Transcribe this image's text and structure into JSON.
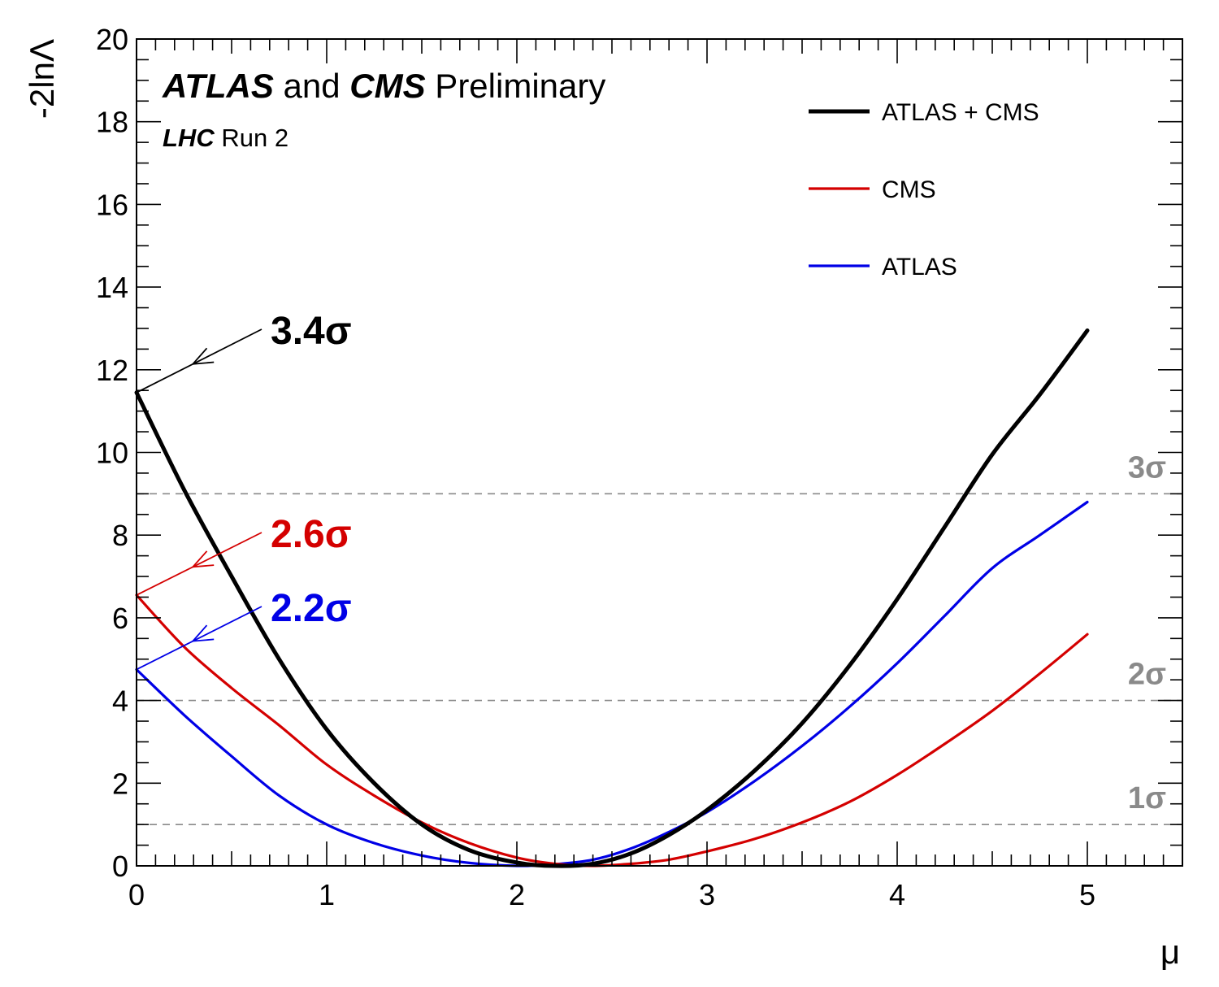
{
  "chart_data": {
    "type": "line",
    "title_parts": [
      {
        "text": "ATLAS",
        "style": "bold-italic"
      },
      {
        "text": " and ",
        "style": "normal"
      },
      {
        "text": "CMS",
        "style": "bold-italic"
      },
      {
        "text": " Preliminary",
        "style": "normal"
      }
    ],
    "subtitle_parts": [
      {
        "text": "LHC",
        "style": "bold-italic"
      },
      {
        "text": " Run 2",
        "style": "normal"
      }
    ],
    "xlabel": "μ",
    "ylabel": "-2lnΛ",
    "xlim": [
      0,
      5.5
    ],
    "ylim": [
      0,
      20
    ],
    "xticks": [
      0,
      1,
      2,
      3,
      4,
      5
    ],
    "yticks": [
      0,
      2,
      4,
      6,
      8,
      10,
      12,
      14,
      16,
      18,
      20
    ],
    "grid": false,
    "legend_position": "top-right",
    "series": [
      {
        "name": "ATLAS + CMS",
        "color": "#000000",
        "x": [
          0,
          0.25,
          0.5,
          0.75,
          1.0,
          1.25,
          1.5,
          1.75,
          2.0,
          2.2,
          2.4,
          2.6,
          2.8,
          3.0,
          3.25,
          3.5,
          3.75,
          4.0,
          4.25,
          4.5,
          4.75,
          5.0
        ],
        "y": [
          11.45,
          9.1,
          7.0,
          5.0,
          3.3,
          2.0,
          1.0,
          0.38,
          0.08,
          0.0,
          0.05,
          0.3,
          0.75,
          1.35,
          2.3,
          3.45,
          4.85,
          6.45,
          8.2,
          9.95,
          11.4,
          12.95
        ]
      },
      {
        "name": "CMS",
        "color": "#d40000",
        "x": [
          0,
          0.25,
          0.5,
          0.75,
          1.0,
          1.25,
          1.5,
          1.75,
          2.0,
          2.2,
          2.4,
          2.6,
          2.8,
          3.0,
          3.25,
          3.5,
          3.75,
          4.0,
          4.25,
          4.5,
          4.75,
          5.0
        ],
        "y": [
          6.55,
          5.3,
          4.3,
          3.4,
          2.45,
          1.7,
          1.05,
          0.55,
          0.2,
          0.05,
          0.0,
          0.05,
          0.15,
          0.35,
          0.65,
          1.05,
          1.55,
          2.2,
          2.95,
          3.75,
          4.65,
          5.6
        ]
      },
      {
        "name": "ATLAS",
        "color": "#0000e6",
        "x": [
          0,
          0.25,
          0.5,
          0.75,
          1.0,
          1.25,
          1.5,
          1.75,
          2.0,
          2.2,
          2.4,
          2.6,
          2.8,
          3.0,
          3.25,
          3.5,
          3.75,
          4.0,
          4.25,
          4.5,
          4.75,
          5.0
        ],
        "y": [
          4.75,
          3.65,
          2.65,
          1.7,
          1.0,
          0.55,
          0.25,
          0.07,
          0.0,
          0.04,
          0.15,
          0.42,
          0.82,
          1.3,
          2.05,
          2.9,
          3.85,
          4.9,
          6.05,
          7.2,
          8.0,
          8.8
        ]
      }
    ],
    "reference_lines": [
      {
        "y": 1,
        "label": "1σ",
        "color": "#8a8a8a"
      },
      {
        "y": 4,
        "label": "2σ",
        "color": "#8a8a8a"
      },
      {
        "y": 9,
        "label": "3σ",
        "color": "#8a8a8a"
      }
    ],
    "annotations": [
      {
        "text": "3.4σ",
        "color": "#000000",
        "points_to": [
          0,
          11.45
        ]
      },
      {
        "text": "2.6σ",
        "color": "#d40000",
        "points_to": [
          0,
          6.55
        ]
      },
      {
        "text": "2.2σ",
        "color": "#0000e6",
        "points_to": [
          0,
          4.75
        ]
      }
    ]
  }
}
